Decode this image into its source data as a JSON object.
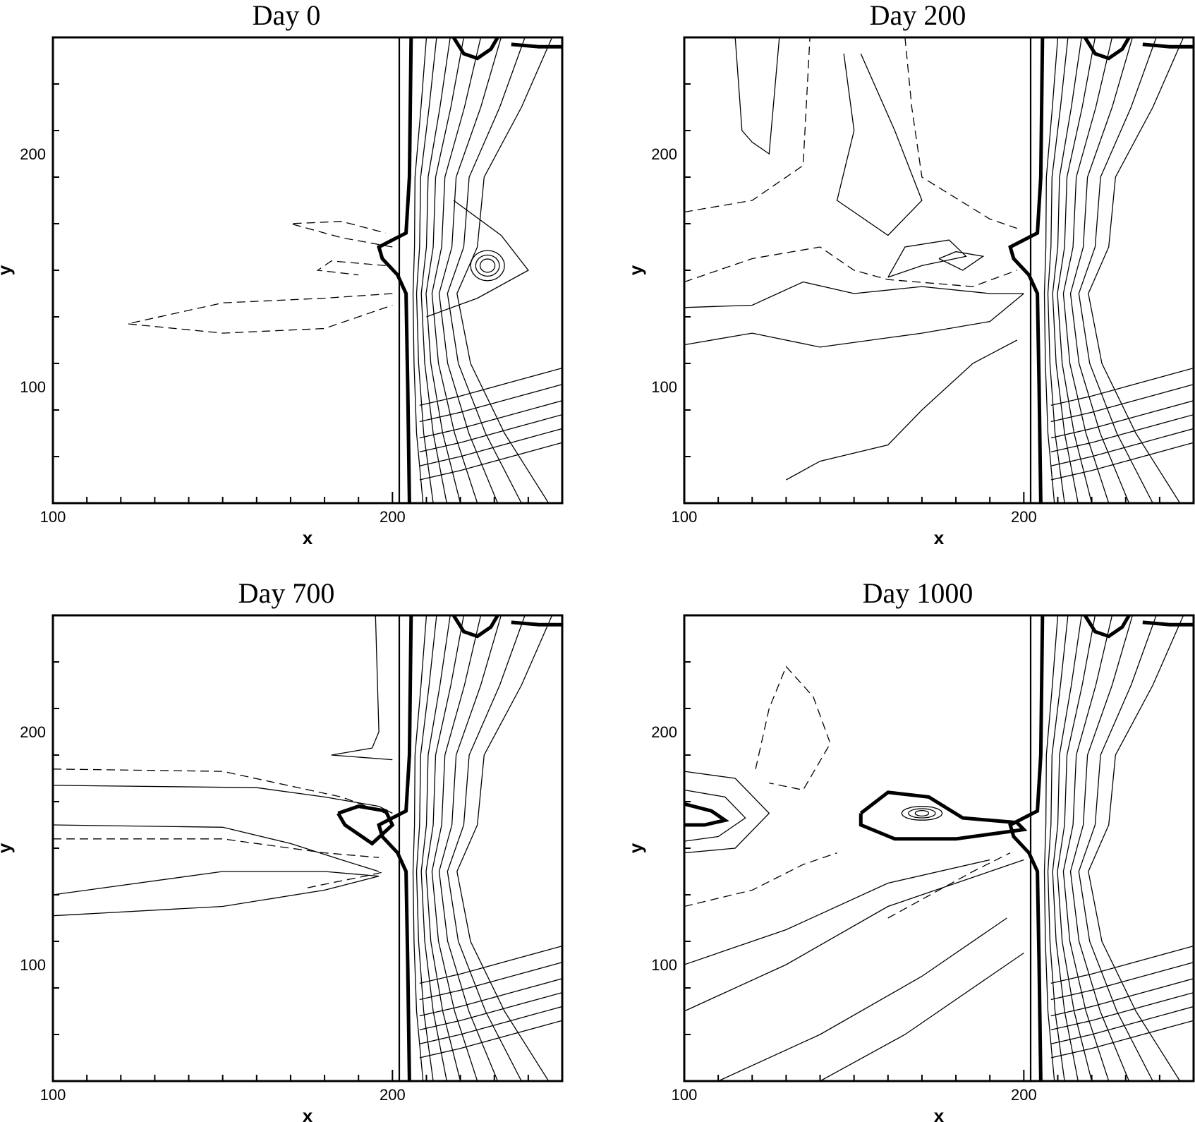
{
  "chart_data": [
    {
      "type": "contour",
      "title": "Day 0",
      "xlabel": "x",
      "ylabel": "y",
      "xlim": [
        100,
        250
      ],
      "ylim": [
        50,
        250
      ],
      "x_ticks": [
        "100",
        "200"
      ],
      "y_ticks": [
        "100",
        "200"
      ],
      "features": [
        "closed circular contours near (228, 152)"
      ]
    },
    {
      "type": "contour",
      "title": "Day 200",
      "xlabel": "x",
      "ylabel": "y",
      "xlim": [
        100,
        250
      ],
      "ylim": [
        50,
        250
      ],
      "x_ticks": [
        "100",
        "200"
      ],
      "y_ticks": [
        "100",
        "200"
      ]
    },
    {
      "type": "contour",
      "title": "Day 700",
      "xlabel": "x",
      "ylabel": "y",
      "xlim": [
        100,
        250
      ],
      "ylim": [
        50,
        250
      ],
      "x_ticks": [
        "100",
        "200"
      ],
      "y_ticks": [
        "100",
        "200"
      ]
    },
    {
      "type": "contour",
      "title": "Day 1000",
      "xlabel": "x",
      "ylabel": "y",
      "xlim": [
        100,
        250
      ],
      "ylim": [
        50,
        250
      ],
      "x_ticks": [
        "100",
        "200"
      ],
      "y_ticks": [
        "100",
        "200"
      ]
    }
  ]
}
